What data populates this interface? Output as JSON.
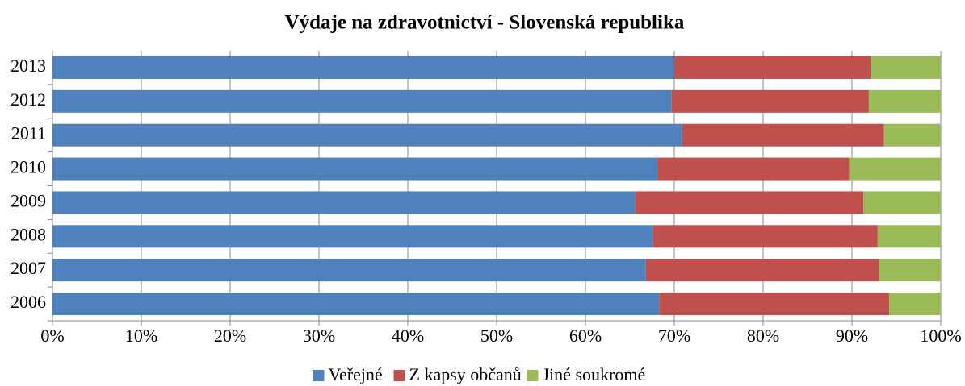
{
  "chart_data": {
    "type": "stacked_bar_horizontal",
    "title": "Výdaje na zdravotnictví - Slovenská republika",
    "categories": [
      "2006",
      "2007",
      "2008",
      "2009",
      "2010",
      "2011",
      "2012",
      "2013"
    ],
    "series": [
      {
        "name": "Veřejné",
        "color": "#4f81bd",
        "values": [
          68.3,
          66.8,
          67.6,
          65.6,
          68.1,
          70.9,
          69.7,
          70.0
        ]
      },
      {
        "name": "Z kapsy občanů",
        "color": "#c0504d",
        "values": [
          25.9,
          26.2,
          25.3,
          25.7,
          21.6,
          22.7,
          22.2,
          22.1
        ]
      },
      {
        "name": "Jiné soukromé",
        "color": "#9bbb59",
        "values": [
          5.8,
          7.0,
          7.1,
          8.7,
          10.3,
          6.4,
          8.1,
          7.9
        ]
      }
    ],
    "xlim": [
      0,
      100
    ],
    "xticks": [
      {
        "value": 0,
        "label": "0%"
      },
      {
        "value": 10,
        "label": "10%"
      },
      {
        "value": 20,
        "label": "20%"
      },
      {
        "value": 30,
        "label": "30%"
      },
      {
        "value": 40,
        "label": "40%"
      },
      {
        "value": 50,
        "label": "50%"
      },
      {
        "value": 60,
        "label": "60%"
      },
      {
        "value": 70,
        "label": "70%"
      },
      {
        "value": 80,
        "label": "80%"
      },
      {
        "value": 90,
        "label": "90%"
      },
      {
        "value": 100,
        "label": "100%"
      }
    ],
    "grid": true,
    "legend": "bottom"
  }
}
